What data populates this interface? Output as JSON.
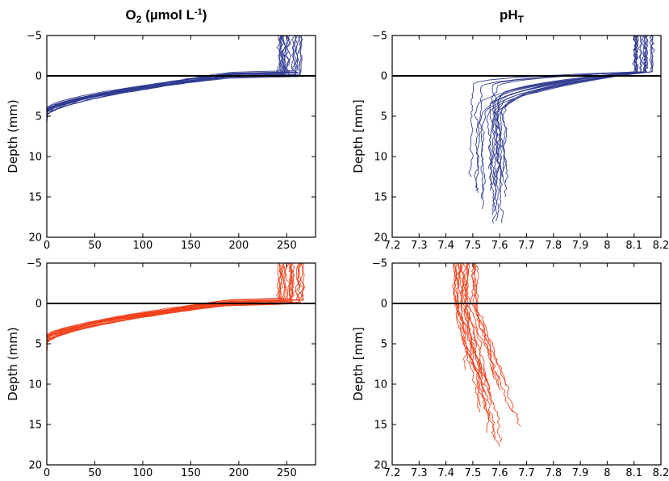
{
  "column_titles": {
    "o2": {
      "base": "O",
      "sub": "2",
      "mid": " (µmol L",
      "sup": "-1",
      "end": ")"
    },
    "ph": {
      "base": "pH",
      "sub": "T"
    }
  },
  "colors": {
    "oxic": "#2e3a8f",
    "anoxic": "#f0401a",
    "interface": "#000000"
  },
  "chart_data": [
    {
      "id": "o2-blue",
      "type": "line",
      "xlabel": "",
      "ylabel": "Depth (mm)",
      "xlim": [
        0,
        280
      ],
      "ylim": [
        -5,
        20
      ],
      "y_inverted": true,
      "xticks": [
        "0",
        "50",
        "100",
        "150",
        "200",
        "250"
      ],
      "yticks": [
        "-5",
        "0",
        "5",
        "10",
        "15",
        "20"
      ],
      "xticklabels_shown": true,
      "reference_line_y": 0,
      "profile_kind": "o2",
      "n_profiles": 20,
      "color": "#2e3a8f",
      "representative_profile": [
        {
          "depth": -5,
          "value": 255
        },
        {
          "depth": -2,
          "value": 253
        },
        {
          "depth": -0.5,
          "value": 245
        },
        {
          "depth": 0,
          "value": 205
        },
        {
          "depth": 1,
          "value": 140
        },
        {
          "depth": 2,
          "value": 75
        },
        {
          "depth": 3,
          "value": 30
        },
        {
          "depth": 4,
          "value": 8
        },
        {
          "depth": 5,
          "value": 0
        }
      ]
    },
    {
      "id": "ph-blue",
      "type": "line",
      "xlabel": "",
      "ylabel": "Depth [mm]",
      "xlim": [
        7.2,
        8.2
      ],
      "ylim": [
        -5,
        20
      ],
      "y_inverted": true,
      "xticks": [
        "7.2",
        "7.3",
        "7.4",
        "7.5",
        "7.6",
        "7.7",
        "7.8",
        "7.9",
        "8",
        "8.1",
        "8.2"
      ],
      "yticks": [
        "-5",
        "0",
        "5",
        "10",
        "15",
        "20"
      ],
      "xticklabels_shown": true,
      "reference_line_y": 0,
      "profile_kind": "ph_blue",
      "n_profiles": 18,
      "color": "#2e3a8f",
      "representative_profile": [
        {
          "depth": -5,
          "value": 8.15
        },
        {
          "depth": -1,
          "value": 8.13
        },
        {
          "depth": 0,
          "value": 8.06
        },
        {
          "depth": 2,
          "value": 7.85
        },
        {
          "depth": 4,
          "value": 7.65
        },
        {
          "depth": 6,
          "value": 7.57
        },
        {
          "depth": 9,
          "value": 7.53
        },
        {
          "depth": 13,
          "value": 7.55
        },
        {
          "depth": 16,
          "value": 7.56
        }
      ]
    },
    {
      "id": "o2-red",
      "type": "line",
      "xlabel": "",
      "ylabel": "Depth (mm)",
      "xlim": [
        0,
        280
      ],
      "ylim": [
        -5,
        20
      ],
      "y_inverted": true,
      "xticks": [
        "0",
        "50",
        "100",
        "150",
        "200",
        "250"
      ],
      "yticks": [
        "-5",
        "0",
        "5",
        "10",
        "15",
        "20"
      ],
      "xticklabels_shown": true,
      "reference_line_y": 0,
      "profile_kind": "o2",
      "n_profiles": 22,
      "color": "#f0401a",
      "representative_profile": [
        {
          "depth": -5,
          "value": 258
        },
        {
          "depth": -1,
          "value": 256
        },
        {
          "depth": 0,
          "value": 210
        },
        {
          "depth": 1,
          "value": 130
        },
        {
          "depth": 2,
          "value": 60
        },
        {
          "depth": 3,
          "value": 20
        },
        {
          "depth": 4,
          "value": 3
        },
        {
          "depth": 5,
          "value": 0
        }
      ]
    },
    {
      "id": "ph-red",
      "type": "line",
      "xlabel": "",
      "ylabel": "Depth [mm]",
      "xlim": [
        7.2,
        8.2
      ],
      "ylim": [
        -5,
        20
      ],
      "y_inverted": true,
      "xticks": [
        "7.2",
        "7.3",
        "7.4",
        "7.5",
        "7.6",
        "7.7",
        "7.8",
        "7.9",
        "8",
        "8.1",
        "8.2"
      ],
      "yticks": [
        "-5",
        "0",
        "5",
        "10",
        "15",
        "20"
      ],
      "xticklabels_shown": true,
      "reference_line_y": 0,
      "profile_kind": "ph_red",
      "n_profiles": 20,
      "color": "#f0401a",
      "representative_profile": [
        {
          "depth": -5,
          "value": 7.47
        },
        {
          "depth": 0,
          "value": 7.48
        },
        {
          "depth": 5,
          "value": 7.5
        },
        {
          "depth": 10,
          "value": 7.52
        },
        {
          "depth": 15,
          "value": 7.53
        },
        {
          "depth": 19,
          "value": 7.54
        }
      ]
    }
  ]
}
